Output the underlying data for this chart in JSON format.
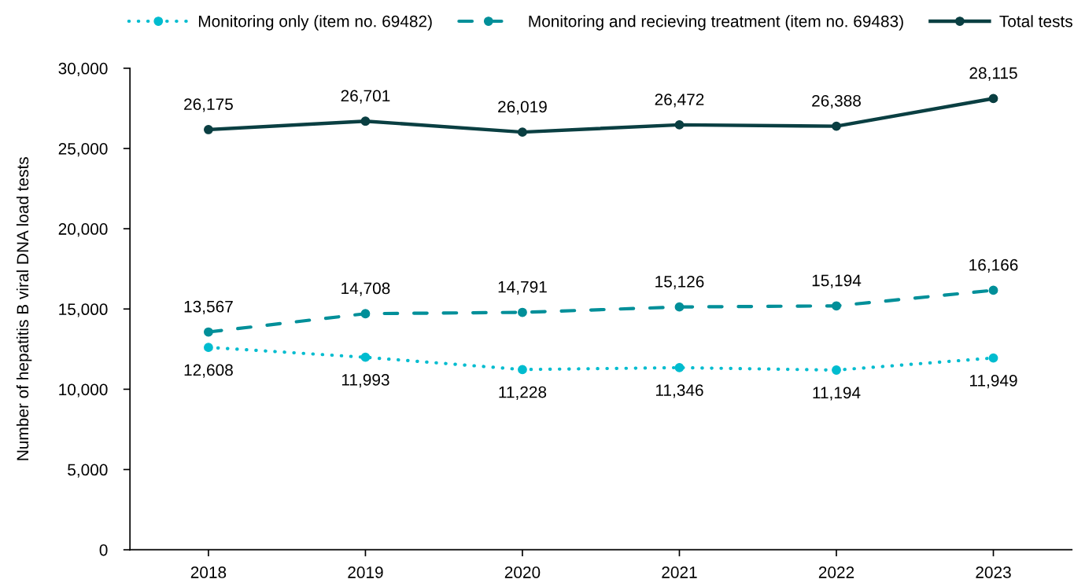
{
  "chart_data": {
    "type": "line",
    "ylabel": "Number of hepatitis B viral DNA load tests",
    "categories": [
      "2018",
      "2019",
      "2020",
      "2021",
      "2022",
      "2023"
    ],
    "series": [
      {
        "name": "Monitoring only (item no. 69482)",
        "color": "#00bccf",
        "line_style": "dotted",
        "values": [
          12608,
          11993,
          11228,
          11346,
          11194,
          11949
        ],
        "value_labels": [
          "12,608",
          "11,993",
          "11,228",
          "11,346",
          "11,194",
          "11,949"
        ]
      },
      {
        "name": "Monitoring and recieving treatment (item no. 69483)",
        "color": "#008f99",
        "line_style": "dashed",
        "values": [
          13567,
          14708,
          14791,
          15126,
          15194,
          16166
        ],
        "value_labels": [
          "13,567",
          "14,708",
          "14,791",
          "15,126",
          "15,194",
          "16,166"
        ]
      },
      {
        "name": "Total tests",
        "color": "#0a3f42",
        "line_style": "solid",
        "values": [
          26175,
          26701,
          26019,
          26472,
          26388,
          28115
        ],
        "value_labels": [
          "26,175",
          "26,701",
          "26,019",
          "26,472",
          "26,388",
          "28,115"
        ]
      }
    ],
    "ylim": [
      0,
      30000
    ],
    "yticks": [
      {
        "value": 0,
        "label": "0"
      },
      {
        "value": 5000,
        "label": "5,000"
      },
      {
        "value": 10000,
        "label": "10,000"
      },
      {
        "value": 15000,
        "label": "15,000"
      },
      {
        "value": 20000,
        "label": "20,000"
      },
      {
        "value": 25000,
        "label": "25,000"
      },
      {
        "value": 30000,
        "label": "30,000"
      }
    ],
    "marker": "circle",
    "grid": false,
    "legend": "top"
  }
}
